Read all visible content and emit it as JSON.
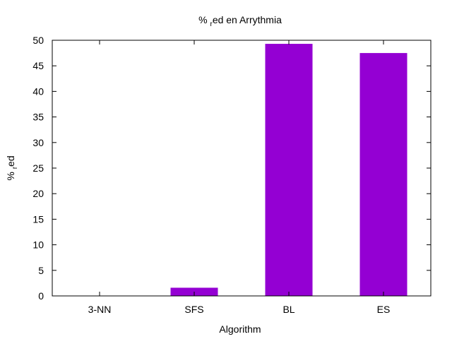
{
  "chart_data": {
    "type": "bar",
    "title_main": "% ",
    "title_sub": "r",
    "title_rest": "ed en Arrythmia",
    "xlabel": "Algorithm",
    "ylabel_main": "% ",
    "ylabel_sub": "r",
    "ylabel_rest": "ed",
    "categories": [
      "3-NN",
      "SFS",
      "BL",
      "ES"
    ],
    "values": [
      0,
      1.6,
      49.3,
      47.5
    ],
    "ylim": [
      0,
      50
    ],
    "yticks": [
      0,
      5,
      10,
      15,
      20,
      25,
      30,
      35,
      40,
      45,
      50
    ],
    "bar_color": "#9400d3",
    "grid": false,
    "legend": "none"
  }
}
